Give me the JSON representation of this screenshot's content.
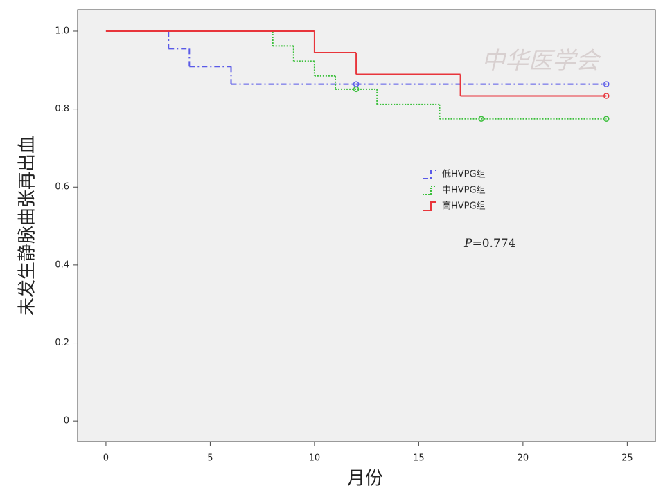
{
  "chart_data": {
    "type": "step",
    "x_label": "月份",
    "y_label": "未发生静脉曲张再出血",
    "watermark": "中华医学会",
    "annotation": {
      "italic": "P",
      "text": "=0.774"
    },
    "xlim": [
      -1.36,
      26.35
    ],
    "ylim": [
      -0.053,
      1.055
    ],
    "xticks": [
      0,
      5,
      10,
      15,
      20,
      25
    ],
    "yticks": [
      {
        "value": 1,
        "label": "1.0"
      },
      0.8,
      0.6,
      0.4,
      0.2,
      0
    ],
    "legend": "right",
    "series": [
      {
        "name": "低HVPG组",
        "color": "#5a5ae8",
        "style": "dashdot",
        "x": [
          0,
          3,
          4,
          6,
          24
        ],
        "values": [
          1,
          0.955,
          0.909,
          0.864,
          0.864
        ],
        "censored_x": [
          12,
          24
        ],
        "censored_values": [
          0.864,
          0.864
        ]
      },
      {
        "name": "中HVPG组",
        "color": "#3bbf3b",
        "style": "dotted",
        "x": [
          0,
          8,
          9,
          10,
          11,
          13,
          16,
          24
        ],
        "values": [
          1,
          0.962,
          0.923,
          0.885,
          0.851,
          0.812,
          0.775,
          0.775
        ],
        "censored_x": [
          12,
          18,
          24
        ],
        "censored_values": [
          0.851,
          0.775,
          0.775
        ]
      },
      {
        "name": "高HVPG组",
        "color": "#e8353b",
        "style": "solid",
        "x": [
          0,
          10,
          12,
          17,
          24
        ],
        "values": [
          1,
          0.945,
          0.889,
          0.834,
          0.834
        ],
        "censored_x": [
          24
        ],
        "censored_values": [
          0.834
        ]
      }
    ]
  }
}
